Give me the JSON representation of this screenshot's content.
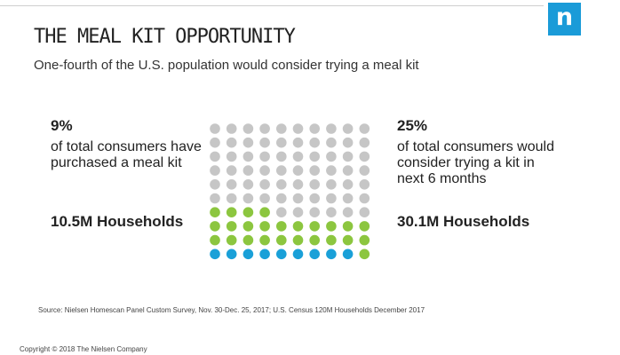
{
  "header": {
    "logo_letter": "n",
    "title": "THE MEAL KIT OPPORTUNITY",
    "subtitle": "One-fourth of the U.S. population would consider trying a meal kit"
  },
  "left_stat": {
    "percent": "9%",
    "description": "of total consumers have purchased a meal kit",
    "households": "10.5M Households"
  },
  "right_stat": {
    "percent": "25%",
    "description": "of total consumers would consider trying a kit in next 6 months",
    "households": "30.1M Households"
  },
  "dot_grid": {
    "rows": 10,
    "columns": 10,
    "purchased_dots": 9,
    "would_try_dots": 25,
    "other_dots": 66
  },
  "colors": {
    "blue": "#1aa0d8",
    "green": "#8cc63f",
    "gray": "#c6c6c6",
    "logo": "#1a9bd8"
  },
  "footer": {
    "source": "Source: Nielsen Homescan Panel Custom Survey, Nov. 30-Dec. 25, 2017; U.S. Census 120M Households December 2017",
    "copyright": "Copyright © 2018 The Nielsen Company"
  }
}
